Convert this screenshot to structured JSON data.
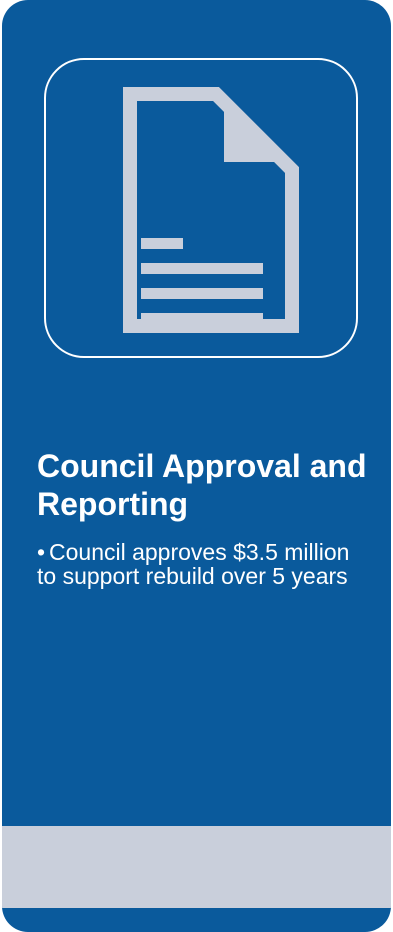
{
  "colors": {
    "card_background": "#0a5a9c",
    "icon_gray": "#c9cfdb",
    "text": "#ffffff",
    "band": "#c9cfdb"
  },
  "icon": "document-icon",
  "card": {
    "title": "Council Approval and Reporting",
    "bullets": [
      {
        "marker": "•",
        "text": "Council approves $3.5 million to support rebuild over 5 years"
      }
    ]
  }
}
